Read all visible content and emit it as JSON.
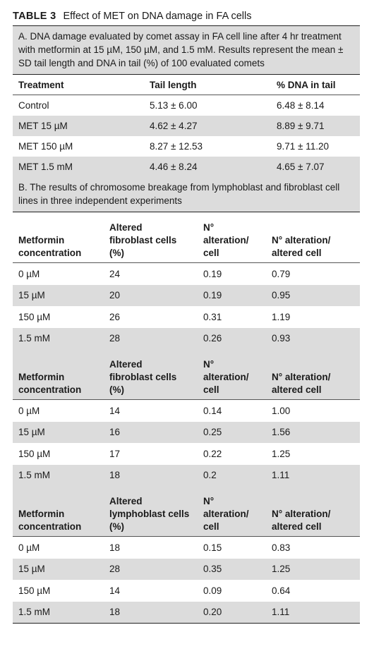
{
  "title_label": "TABLE 3",
  "title": "Effect of MET on DNA damage in FA cells",
  "section_a": {
    "caption": "A. DNA damage evaluated by comet assay in FA cell line after 4 hr treatment with metformin at 15 µM, 150 µM, and 1.5 mM. Results represent the mean ± SD tail length and DNA in tail (%) of 100 evaluated comets",
    "header": [
      "Treatment",
      "Tail length",
      "% DNA in tail"
    ],
    "rows": [
      [
        "Control",
        "5.13 ± 6.00",
        "6.48 ± 8.14"
      ],
      [
        "MET 15 µM",
        "4.62 ± 4.27",
        "8.89 ± 9.71"
      ],
      [
        "MET 150 µM",
        "8.27 ± 12.53",
        "9.71 ± 11.20"
      ],
      [
        "MET 1.5 mM",
        "4.46 ± 8.24",
        "4.65 ± 7.07"
      ]
    ]
  },
  "section_b": {
    "caption": "B. The results of chromosome breakage from lymphoblast and fibroblast cell lines in three independent experiments",
    "tables": [
      {
        "header": [
          [
            "Metformin",
            "concentration"
          ],
          [
            "Altered",
            "fibroblast cells",
            "(%)"
          ],
          [
            "N°",
            "alteration/",
            "cell"
          ],
          [
            "N° alteration/",
            "altered cell"
          ]
        ],
        "rows": [
          [
            "0 µM",
            "24",
            "0.19",
            "0.79"
          ],
          [
            "15 µM",
            "20",
            "0.19",
            "0.95"
          ],
          [
            "150 µM",
            "26",
            "0.31",
            "1.19"
          ],
          [
            "1.5 mM",
            "28",
            "0.26",
            "0.93"
          ]
        ]
      },
      {
        "header": [
          [
            "Metformin",
            "concentration"
          ],
          [
            "Altered",
            "fibroblast cells",
            "(%)"
          ],
          [
            "N°",
            "alteration/",
            "cell"
          ],
          [
            "N° alteration/",
            "altered cell"
          ]
        ],
        "rows": [
          [
            "0 µM",
            "14",
            "0.14",
            "1.00"
          ],
          [
            "15 µM",
            "16",
            "0.25",
            "1.56"
          ],
          [
            "150 µM",
            "17",
            "0.22",
            "1.25"
          ],
          [
            "1.5 mM",
            "18",
            "0.2",
            "1.11"
          ]
        ]
      },
      {
        "header": [
          [
            "Metformin",
            "concentration"
          ],
          [
            "Altered",
            "lymphoblast cells",
            "(%)"
          ],
          [
            "N°",
            "alteration/",
            "cell"
          ],
          [
            "N° alteration/",
            "altered cell"
          ]
        ],
        "rows": [
          [
            "0 µM",
            "18",
            "0.15",
            "0.83"
          ],
          [
            "15 µM",
            "28",
            "0.35",
            "1.25"
          ],
          [
            "150 µM",
            "14",
            "0.09",
            "0.64"
          ],
          [
            "1.5 mM",
            "18",
            "0.20",
            "1.11"
          ]
        ]
      }
    ]
  }
}
